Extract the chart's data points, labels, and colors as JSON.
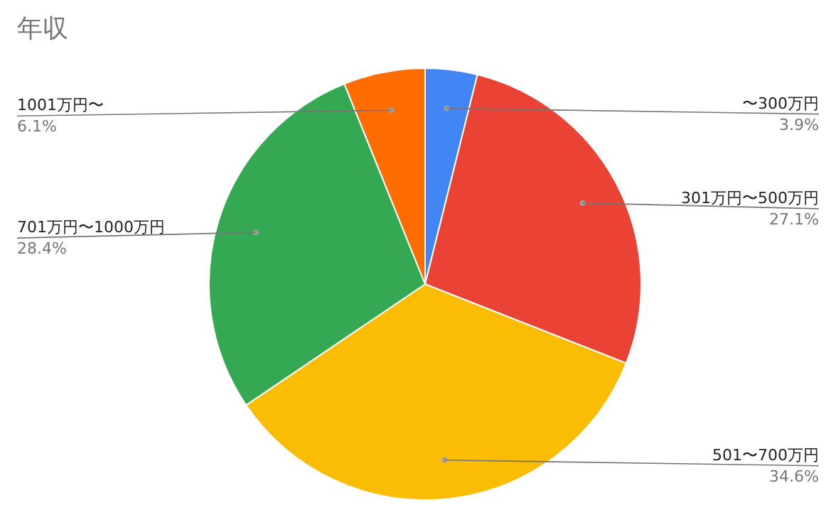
{
  "chart_data": {
    "type": "pie",
    "title": "年収",
    "categories": [
      "〜300万円",
      "301万円〜500万円",
      "501〜700万円",
      "701万円〜1000万円",
      "1001万円〜"
    ],
    "values": [
      3.9,
      27.1,
      34.6,
      28.4,
      6.1
    ],
    "value_labels": [
      "3.9%",
      "27.1%",
      "34.6%",
      "28.4%",
      "6.1%"
    ],
    "colors": [
      "#4285f4",
      "#ea4335",
      "#fbbc04",
      "#34a853",
      "#ff6d01"
    ],
    "legend": false
  }
}
